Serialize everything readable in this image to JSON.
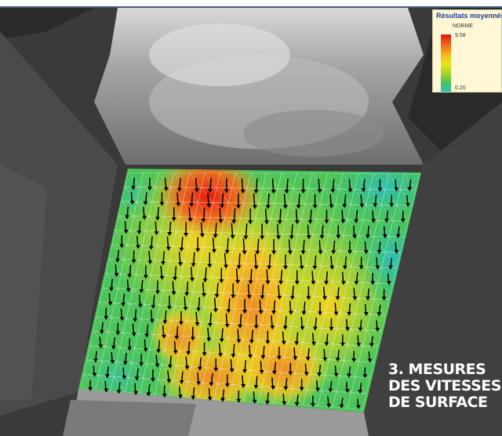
{
  "legend": {
    "title": "Résultats moyennés",
    "subtitle": "NORME",
    "max_value": "9.58",
    "min_value": "0.20",
    "colors": [
      "#e01414",
      "#f26a1a",
      "#f4c21e",
      "#e8e41e",
      "#a6d62a",
      "#48c45a",
      "#2fc0b4"
    ]
  },
  "caption": {
    "line1": "3. MESURES",
    "line2": "DES VITESSES",
    "line3": "DE SURFACE"
  }
}
